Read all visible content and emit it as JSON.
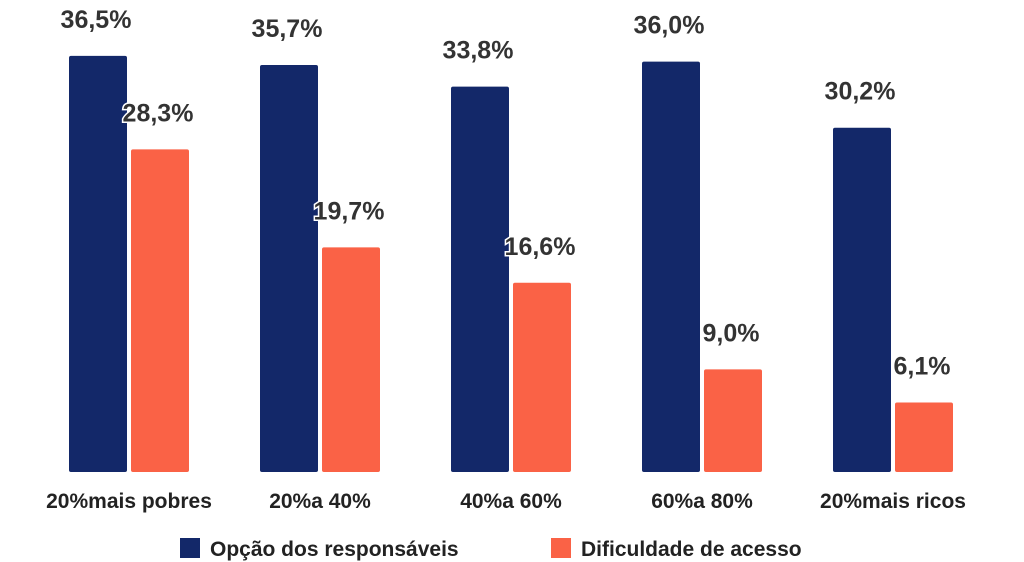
{
  "chart_data": {
    "type": "bar",
    "categories": [
      "20%mais pobres",
      "20%a 40%",
      "40%a 60%",
      "60%a 80%",
      "20%mais ricos"
    ],
    "series": [
      {
        "name": "Opção dos responsáveis",
        "color": "#132869",
        "values": [
          36.5,
          35.7,
          33.8,
          36.0,
          30.2
        ],
        "labels": [
          "36,5%",
          "35,7%",
          "33,8%",
          "36,0%",
          "30,2%"
        ]
      },
      {
        "name": "Dificuldade de acesso",
        "color": "#FA6246",
        "values": [
          28.3,
          19.7,
          16.6,
          9.0,
          6.1
        ],
        "labels": [
          "28,3%",
          "19,7%",
          "16,6%",
          "9,0%",
          "6,1%"
        ]
      }
    ],
    "ylim": [
      0,
      40
    ],
    "grid": false,
    "legend_position": "bottom-center"
  }
}
